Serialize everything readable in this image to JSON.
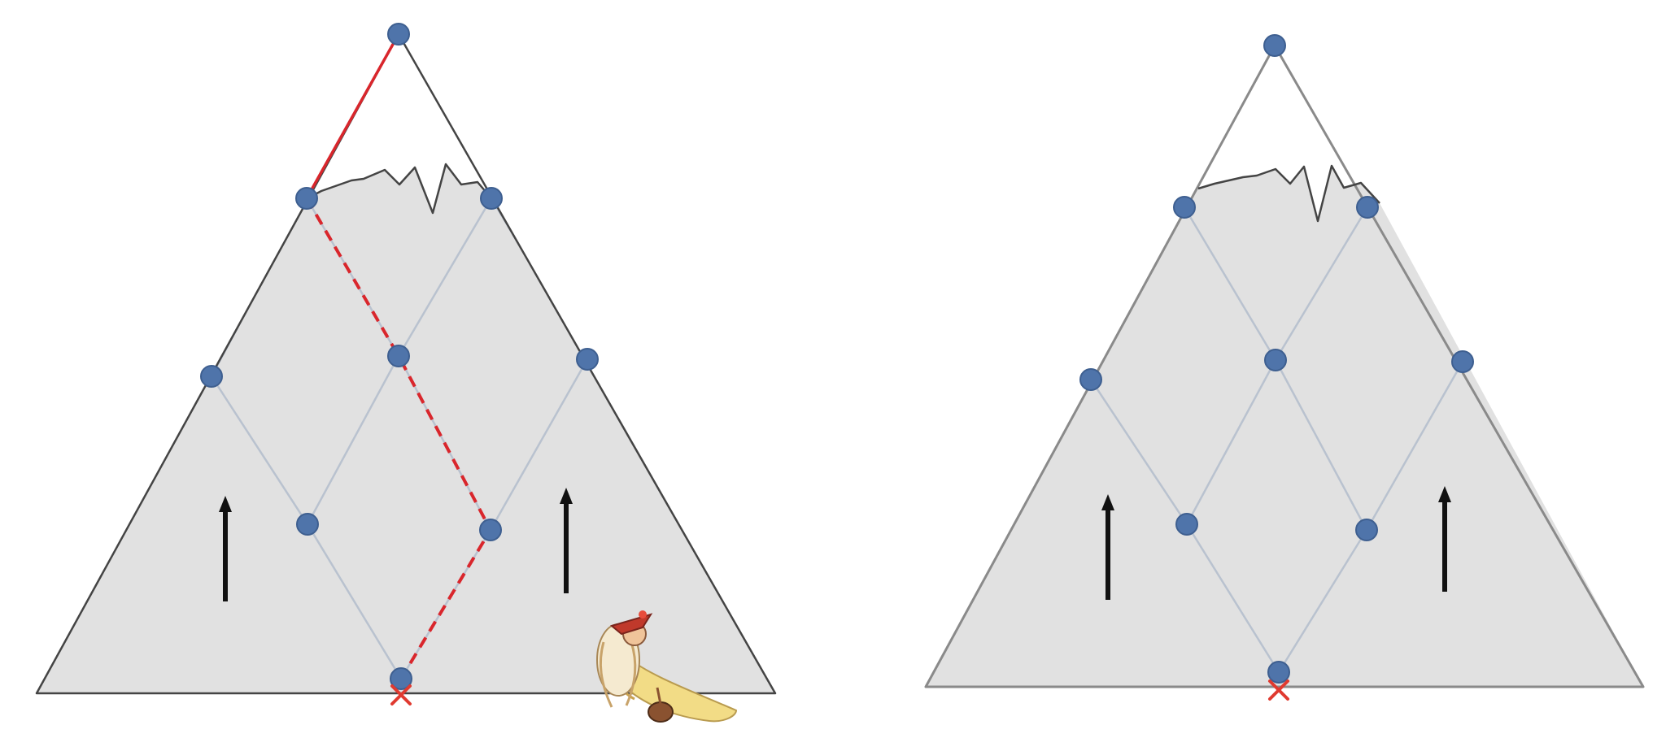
{
  "colors": {
    "mountain_fill": "#e1e1e1",
    "mountain_outline": "#444444",
    "lattice_line": "#b9c2cf",
    "node": "#4f74aa",
    "node_stroke": "#3e5f90",
    "climb_path": "#d9262c",
    "start_marker": "#e03a30",
    "arrow": "#111111"
  },
  "icons": [
    "up-arrow-icon",
    "climber-figure-icon",
    "start-x-mark-icon"
  ],
  "panels": [
    {
      "name": "left-mountain",
      "levels": 4,
      "shows_climb_path": true,
      "shows_climber": true
    },
    {
      "name": "right-mountain",
      "levels": 4,
      "shows_climb_path": false,
      "shows_climber": false
    }
  ]
}
